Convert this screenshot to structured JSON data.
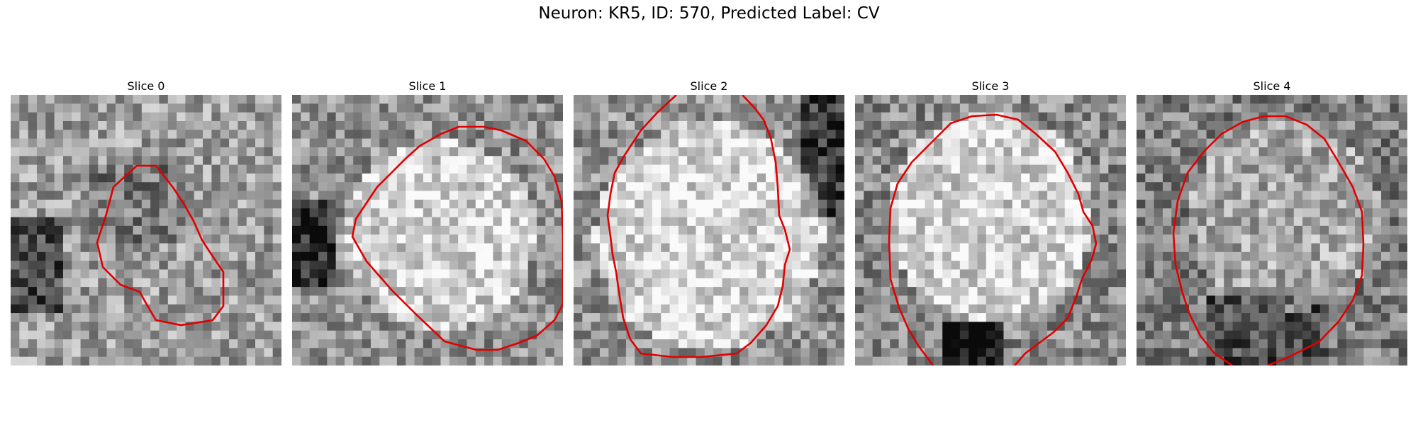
{
  "figure": {
    "title": "Neuron: KR5, ID: 570, Predicted Label: CV"
  },
  "panels": [
    {
      "title": "Slice 0",
      "bg": "mottled",
      "dark_regions": [
        "left-center",
        "bottom-left"
      ],
      "contour_color": "#e00000"
    },
    {
      "title": "Slice 1",
      "bg": "bright-center",
      "dark_regions": [
        "left-center"
      ],
      "contour_color": "#e00000"
    },
    {
      "title": "Slice 2",
      "bg": "bright-center",
      "dark_regions": [
        "right-top"
      ],
      "contour_color": "#e00000"
    },
    {
      "title": "Slice 3",
      "bg": "bright-center",
      "dark_regions": [
        "bottom-center"
      ],
      "contour_color": "#e00000"
    },
    {
      "title": "Slice 4",
      "bg": "noisy-dark",
      "dark_regions": [
        "left-top",
        "bottom-center"
      ],
      "contour_color": "#e00000"
    }
  ],
  "colors": {
    "contour": "#e00000",
    "background": "#ffffff"
  }
}
